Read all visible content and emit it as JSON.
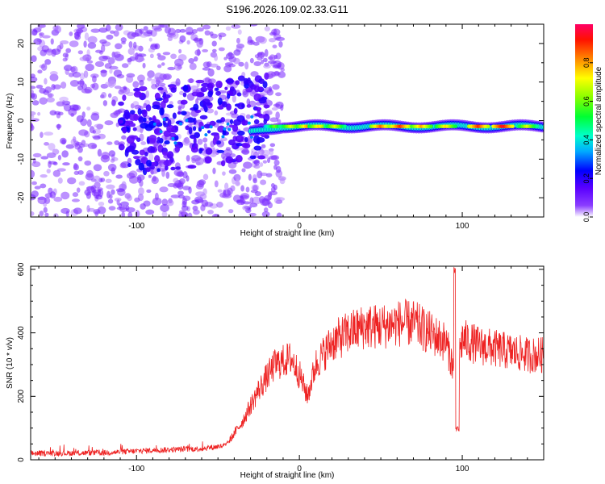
{
  "title": "S196.2026.109.02.33.G11",
  "chart_data": [
    {
      "type": "heatmap",
      "name": "spectrogram",
      "xlabel": "Height of straight line (km)",
      "ylabel": "Frequency (Hz)",
      "xlim": [
        -165,
        150
      ],
      "ylim": [
        -25,
        25
      ],
      "xticks": [
        -100,
        0,
        100
      ],
      "yticks": [
        -20,
        -10,
        0,
        10,
        20
      ],
      "colorbar": {
        "label": "Normalized spectral amplitude",
        "range": [
          0,
          1
        ],
        "ticks": [
          0.0,
          0.2,
          0.4,
          0.6,
          0.8
        ],
        "tick_labels": [
          "0.0",
          "0.2",
          "0.4",
          "0.6",
          "0.8"
        ],
        "colors": [
          "#ffffff",
          "#6600ff",
          "#0000ff",
          "#00ccff",
          "#00ff66",
          "#33ff00",
          "#ffff00",
          "#ff6600",
          "#ff0000",
          "#ff0066"
        ]
      },
      "description_features": {
        "ridge_start_km": -30,
        "ridge_center_hz": -1.5,
        "scatter_region_km": [
          -165,
          -25
        ],
        "scatter_freq_range_hz": [
          -25,
          25
        ]
      }
    },
    {
      "type": "line",
      "name": "snr",
      "xlabel": "Height of straight line (km)",
      "ylabel": "SNR (10 * v/v)",
      "xlim": [
        -165,
        150
      ],
      "ylim": [
        0,
        610
      ],
      "xticks": [
        -100,
        0,
        100
      ],
      "yticks": [
        0,
        200,
        400,
        600
      ],
      "color": "#ee2222",
      "trend": {
        "x": [
          -165,
          -120,
          -90,
          -60,
          -45,
          -35,
          -25,
          -15,
          -5,
          0,
          5,
          10,
          20,
          30,
          40,
          50,
          60,
          70,
          80,
          90,
          95,
          97,
          100,
          110,
          120,
          130,
          140,
          150
        ],
        "y": [
          20,
          22,
          30,
          35,
          45,
          120,
          220,
          300,
          320,
          270,
          200,
          300,
          370,
          400,
          420,
          420,
          430,
          430,
          400,
          370,
          280,
          300,
          380,
          360,
          350,
          340,
          330,
          330
        ]
      },
      "features": [
        {
          "x": 96,
          "y": 600,
          "kind": "spike"
        },
        {
          "x": 97,
          "y": 95,
          "kind": "dip"
        }
      ]
    }
  ]
}
